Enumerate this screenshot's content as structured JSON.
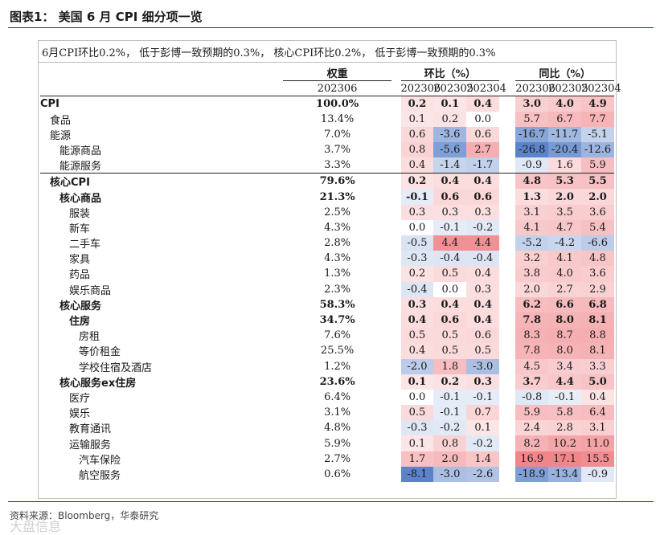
{
  "title": "图表1：  美国 6 月 CPI 细分项一览",
  "subtitle": "6月CPI环比0.2%，  低于彭博一致预期的0.3%，  核心CPI环比0.2%，  低于彭博一致预期的0.3%",
  "headers": {
    "weight": "权重",
    "mom": "环比（%）",
    "yoy": "同比（%）",
    "weight_period": "202306",
    "mom_periods": [
      "202306",
      "202305",
      "202304"
    ],
    "yoy_periods": [
      "202306",
      "202305",
      "202304"
    ]
  },
  "rows": [
    {
      "name": "CPI",
      "level": 0,
      "bold": true,
      "weight": "100.0%",
      "mom": [
        "0.2",
        "0.1",
        "0.4"
      ],
      "yoy": [
        "3.0",
        "4.0",
        "4.9"
      ]
    },
    {
      "name": "食品",
      "level": 1,
      "bold": false,
      "weight": "13.4%",
      "mom": [
        "0.1",
        "0.2",
        "0.0"
      ],
      "yoy": [
        "5.7",
        "6.7",
        "7.7"
      ]
    },
    {
      "name": "能源",
      "level": 1,
      "bold": false,
      "weight": "7.0%",
      "mom": [
        "0.6",
        "-3.6",
        "0.6"
      ],
      "yoy": [
        "-16.7",
        "-11.7",
        "-5.1"
      ]
    },
    {
      "name": "能源商品",
      "level": 2,
      "bold": false,
      "weight": "3.7%",
      "mom": [
        "0.8",
        "-5.6",
        "2.7"
      ],
      "yoy": [
        "-26.8",
        "-20.4",
        "-12.6"
      ]
    },
    {
      "name": "能源服务",
      "level": 2,
      "bold": false,
      "weight": "3.3%",
      "mom": [
        "0.4",
        "-1.4",
        "-1.7"
      ],
      "yoy": [
        "-0.9",
        "1.6",
        "5.9"
      ]
    },
    {
      "name": "核心CPI",
      "level": 1,
      "bold": true,
      "weight": "79.6%",
      "mom": [
        "0.2",
        "0.4",
        "0.4"
      ],
      "yoy": [
        "4.8",
        "5.3",
        "5.5"
      ]
    },
    {
      "name": "核心商品",
      "level": 2,
      "bold": true,
      "weight": "21.3%",
      "mom": [
        "-0.1",
        "0.6",
        "0.6"
      ],
      "yoy": [
        "1.3",
        "2.0",
        "2.0"
      ]
    },
    {
      "name": "服装",
      "level": 3,
      "bold": false,
      "weight": "2.5%",
      "mom": [
        "0.3",
        "0.3",
        "0.3"
      ],
      "yoy": [
        "3.1",
        "3.5",
        "3.6"
      ]
    },
    {
      "name": "新车",
      "level": 3,
      "bold": false,
      "weight": "4.3%",
      "mom": [
        "0.0",
        "-0.1",
        "-0.2"
      ],
      "yoy": [
        "4.1",
        "4.7",
        "5.4"
      ]
    },
    {
      "name": "二手车",
      "level": 3,
      "bold": false,
      "weight": "2.8%",
      "mom": [
        "-0.5",
        "4.4",
        "4.4"
      ],
      "yoy": [
        "-5.2",
        "-4.2",
        "-6.6"
      ]
    },
    {
      "name": "家具",
      "level": 3,
      "bold": false,
      "weight": "4.3%",
      "mom": [
        "-0.3",
        "-0.4",
        "-0.4"
      ],
      "yoy": [
        "3.2",
        "4.1",
        "4.8"
      ]
    },
    {
      "name": "药品",
      "level": 3,
      "bold": false,
      "weight": "1.3%",
      "mom": [
        "0.2",
        "0.5",
        "0.4"
      ],
      "yoy": [
        "3.8",
        "4.0",
        "3.6"
      ]
    },
    {
      "name": "娱乐商品",
      "level": 3,
      "bold": false,
      "weight": "2.3%",
      "mom": [
        "-0.4",
        "0.0",
        "0.3"
      ],
      "yoy": [
        "2.0",
        "2.7",
        "2.9"
      ]
    },
    {
      "name": "核心服务",
      "level": 2,
      "bold": true,
      "weight": "58.3%",
      "mom": [
        "0.3",
        "0.4",
        "0.4"
      ],
      "yoy": [
        "6.2",
        "6.6",
        "6.8"
      ]
    },
    {
      "name": "住房",
      "level": 3,
      "bold": true,
      "weight": "34.7%",
      "mom": [
        "0.4",
        "0.6",
        "0.4"
      ],
      "yoy": [
        "7.8",
        "8.0",
        "8.1"
      ]
    },
    {
      "name": "房租",
      "level": 4,
      "bold": false,
      "weight": "7.6%",
      "mom": [
        "0.5",
        "0.5",
        "0.6"
      ],
      "yoy": [
        "8.3",
        "8.7",
        "8.8"
      ]
    },
    {
      "name": "等价租金",
      "level": 4,
      "bold": false,
      "weight": "25.5%",
      "mom": [
        "0.4",
        "0.5",
        "0.5"
      ],
      "yoy": [
        "7.8",
        "8.0",
        "8.1"
      ]
    },
    {
      "name": "学校住宿及酒店",
      "level": 4,
      "bold": false,
      "weight": "1.2%",
      "mom": [
        "-2.0",
        "1.8",
        "-3.0"
      ],
      "yoy": [
        "4.5",
        "3.4",
        "3.3"
      ]
    },
    {
      "name": "核心服务ex住房",
      "level": 2,
      "bold": true,
      "weight": "23.6%",
      "mom": [
        "0.1",
        "0.2",
        "0.3"
      ],
      "yoy": [
        "3.7",
        "4.4",
        "5.0"
      ]
    },
    {
      "name": "医疗",
      "level": 3,
      "bold": false,
      "weight": "6.4%",
      "mom": [
        "0.0",
        "-0.1",
        "-0.1"
      ],
      "yoy": [
        "-0.8",
        "-0.1",
        "0.4"
      ]
    },
    {
      "name": "娱乐",
      "level": 3,
      "bold": false,
      "weight": "3.1%",
      "mom": [
        "0.5",
        "-0.1",
        "0.7"
      ],
      "yoy": [
        "5.9",
        "5.8",
        "6.4"
      ]
    },
    {
      "name": "教育通讯",
      "level": 3,
      "bold": false,
      "weight": "4.8%",
      "mom": [
        "-0.3",
        "-0.2",
        "0.1"
      ],
      "yoy": [
        "2.4",
        "2.8",
        "3.1"
      ]
    },
    {
      "name": "运输服务",
      "level": 3,
      "bold": false,
      "weight": "5.9%",
      "mom": [
        "0.1",
        "0.8",
        "-0.2"
      ],
      "yoy": [
        "8.2",
        "10.2",
        "11.0"
      ]
    },
    {
      "name": "汽车保险",
      "level": 4,
      "bold": false,
      "weight": "2.7%",
      "mom": [
        "1.7",
        "2.0",
        "1.4"
      ],
      "yoy": [
        "16.9",
        "17.1",
        "15.5"
      ]
    },
    {
      "name": "航空服务",
      "level": 4,
      "bold": false,
      "weight": "0.6%",
      "mom": [
        "-8.1",
        "-3.0",
        "-2.6"
      ],
      "yoy": [
        "-18.9",
        "-13.4",
        "-0.9"
      ]
    }
  ],
  "source": "资料来源：Bloomberg，华泰研究",
  "watermark": "大盘信息"
}
